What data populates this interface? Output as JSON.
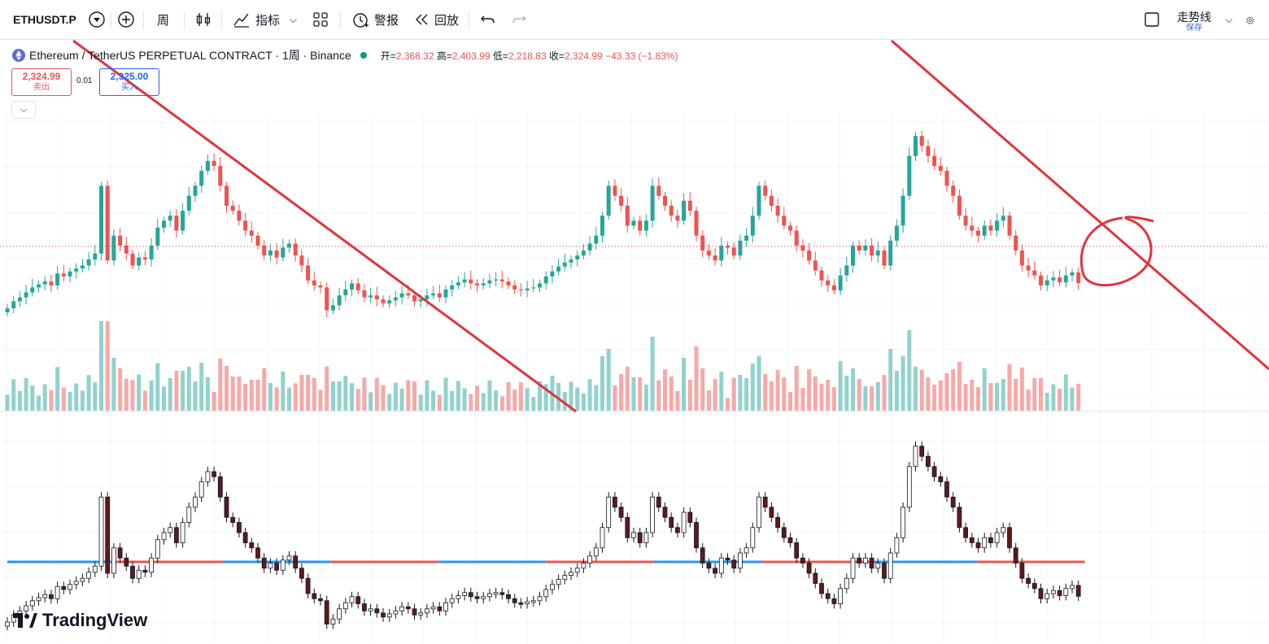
{
  "toolbar": {
    "symbol": "ETHUSDT.P",
    "interval": "周",
    "indicators_label": "指标",
    "alert_label": "警报",
    "replay_label": "回放",
    "layout_name": "走势线",
    "save_label": "保存"
  },
  "legend": {
    "title": "Ethereum / TetherUS PERPETUAL CONTRACT · 1周 · Binance",
    "open_label": "开=",
    "open": "2,368.32",
    "high_label": "高=",
    "high": "2,403.99",
    "low_label": "低=",
    "low": "2,218.83",
    "close_label": "收=",
    "close": "2,324.99",
    "change": "−43.33 (−1.83%)"
  },
  "trade": {
    "sell_price": "2,324.99",
    "sell_label": "卖出",
    "spread": "0.01",
    "buy_price": "2,325.00",
    "buy_label": "买入"
  },
  "brand": "TradingView",
  "colors": {
    "up": "#26a69a",
    "down": "#ef5350",
    "trendline": "#e0343f",
    "zero_up": "#2196f3",
    "zero_down": "#ef5350"
  },
  "chart_data": {
    "type": "candlestick",
    "series_close": [
      2070,
      2140,
      2180,
      2230,
      2280,
      2310,
      2340,
      2300,
      2420,
      2390,
      2440,
      2470,
      2500,
      2560,
      2620,
      3300,
      2550,
      2800,
      2700,
      2620,
      2500,
      2580,
      2560,
      2700,
      2880,
      2950,
      3000,
      2850,
      3050,
      3200,
      3300,
      3450,
      3550,
      3500,
      3300,
      3100,
      3050,
      2950,
      2850,
      2800,
      2700,
      2600,
      2650,
      2580,
      2680,
      2720,
      2600,
      2500,
      2350,
      2300,
      2280,
      2050,
      2100,
      2200,
      2260,
      2320,
      2250,
      2180,
      2200,
      2160,
      2120,
      2150,
      2180,
      2220,
      2200,
      2140,
      2160,
      2200,
      2220,
      2180,
      2260,
      2300,
      2330,
      2360,
      2320,
      2300,
      2320,
      2350,
      2360,
      2340,
      2300,
      2260,
      2250,
      2270,
      2280,
      2320,
      2390,
      2440,
      2490,
      2530,
      2560,
      2600,
      2650,
      2720,
      2800,
      3000,
      3300,
      3200,
      3100,
      2900,
      2950,
      2850,
      2950,
      3300,
      3200,
      3100,
      3000,
      2950,
      3150,
      3050,
      2800,
      2650,
      2600,
      2550,
      2700,
      2680,
      2600,
      2750,
      2800,
      3000,
      3300,
      3200,
      3100,
      3000,
      2900,
      2850,
      2700,
      2650,
      2550,
      2450,
      2350,
      2300,
      2250,
      2400,
      2500,
      2700,
      2650,
      2700,
      2600,
      2650,
      2500,
      2750,
      2900,
      3200,
      3600,
      3800,
      3700,
      3600,
      3500,
      3450,
      3300,
      3200,
      3000,
      2900,
      2850,
      2800,
      2900,
      2850,
      2950,
      3000,
      2800,
      2650,
      2500,
      2450,
      2400,
      2300,
      2350,
      2380,
      2330,
      2400,
      2430,
      2324
    ],
    "zero_line_segments": [
      "blue",
      "red",
      "blue",
      "red",
      "blue",
      "red",
      "blue",
      "red",
      "blue",
      "red"
    ]
  }
}
